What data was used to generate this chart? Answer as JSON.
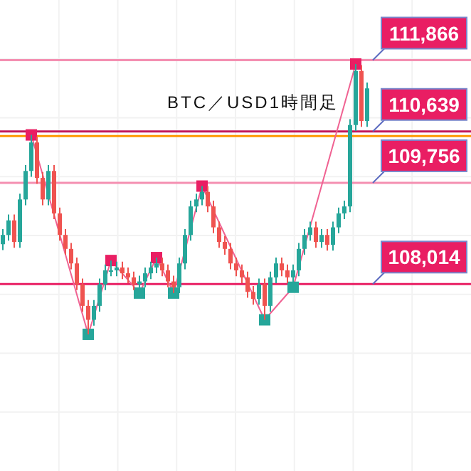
{
  "chart_data": {
    "type": "candlestick",
    "title": "BTC／USD1時間足",
    "categories": [
      null,
      null,
      null,
      null,
      null,
      null,
      null,
      null,
      null,
      null,
      null,
      null,
      null,
      null,
      null,
      null,
      null,
      null,
      null,
      null,
      null,
      null,
      null,
      null,
      null,
      null,
      null,
      null,
      null,
      null,
      null,
      null,
      null,
      null,
      null,
      null,
      null,
      null,
      null,
      null,
      null,
      null,
      null,
      null,
      null,
      null,
      null,
      null,
      null,
      null,
      null,
      null,
      null,
      null,
      null,
      null,
      null,
      null,
      null,
      null,
      null,
      null,
      null,
      null,
      null
    ],
    "ylim": [
      104800,
      112900
    ],
    "grid": true,
    "series": [
      {
        "colors": [
          "#26a69a",
          "#26a69a",
          "#ef5350",
          "#26a69a",
          "#26a69a",
          "#26a69a",
          "#ef5350",
          "#ef5350",
          "#26a69a",
          "#ef5350",
          "#ef5350",
          "#ef5350",
          "#ef5350",
          "#ef5350",
          "#ef5350",
          "#ef5350",
          "#26a69a",
          "#26a69a",
          "#26a69a",
          "#26a69a",
          "#26a69a",
          "#ef5350",
          "#ef5350",
          "#ef5350",
          "#26a69a",
          "#26a69a",
          "#26a69a",
          "#26a69a",
          "#ef5350",
          "#ef5350",
          "#ef5350",
          "#26a69a",
          "#26a69a",
          "#26a69a",
          "#26a69a",
          "#26a69a",
          "#ef5350",
          "#ef5350",
          "#ef5350",
          "#ef5350",
          "#ef5350",
          "#ef5350",
          "#ef5350",
          "#ef5350",
          "#ef5350",
          "#26a69a",
          "#ef5350",
          "#26a69a",
          "#26a69a",
          "#ef5350",
          "#ef5350",
          "#26a69a",
          "#26a69a",
          "#26a69a",
          "#26a69a",
          "#ef5350",
          "#26a69a",
          "#ef5350",
          "#26a69a",
          "#26a69a",
          "#26a69a",
          "#26a69a",
          "#26a69a",
          "#ef5350",
          "#26a69a"
        ],
        "ohlc": [
          [
            108700,
            108960,
            108600,
            108860
          ],
          [
            108860,
            109210,
            108760,
            109110
          ],
          [
            109110,
            109210,
            108640,
            108740
          ],
          [
            108740,
            109570,
            108640,
            109470
          ],
          [
            109470,
            110060,
            109370,
            109960
          ],
          [
            109960,
            110580,
            109860,
            110450
          ],
          [
            110450,
            110550,
            109740,
            109840
          ],
          [
            109840,
            109940,
            109370,
            109470
          ],
          [
            109470,
            110060,
            109370,
            109960
          ],
          [
            109960,
            110060,
            109130,
            109230
          ],
          [
            109230,
            109330,
            108760,
            108860
          ],
          [
            108860,
            108960,
            108520,
            108620
          ],
          [
            108620,
            108720,
            108270,
            108370
          ],
          [
            108370,
            108470,
            107910,
            108010
          ],
          [
            108010,
            108110,
            107540,
            107640
          ],
          [
            107640,
            107740,
            107150,
            107400
          ],
          [
            107400,
            107740,
            107300,
            107640
          ],
          [
            107640,
            108110,
            107540,
            108010
          ],
          [
            108010,
            108350,
            107910,
            108250
          ],
          [
            108250,
            108420,
            108150,
            108250
          ],
          [
            108250,
            108400,
            108150,
            108300
          ],
          [
            108300,
            108400,
            108100,
            108200
          ],
          [
            108200,
            108300,
            108030,
            108130
          ],
          [
            108130,
            108230,
            107910,
            108010
          ],
          [
            108010,
            108160,
            107860,
            108060
          ],
          [
            108060,
            108300,
            107960,
            108200
          ],
          [
            108200,
            108400,
            108100,
            108300
          ],
          [
            108300,
            108470,
            108200,
            108370
          ],
          [
            108370,
            108470,
            108150,
            108250
          ],
          [
            108250,
            108350,
            107960,
            108060
          ],
          [
            108060,
            108160,
            107860,
            107960
          ],
          [
            107960,
            108470,
            107860,
            108370
          ],
          [
            108370,
            108960,
            108270,
            108860
          ],
          [
            108860,
            109450,
            108760,
            109350
          ],
          [
            109350,
            109570,
            109250,
            109470
          ],
          [
            109470,
            109700,
            109370,
            109600
          ],
          [
            109600,
            109700,
            109250,
            109350
          ],
          [
            109350,
            109450,
            108890,
            108990
          ],
          [
            108990,
            109090,
            108640,
            108740
          ],
          [
            108740,
            108840,
            108520,
            108620
          ],
          [
            108620,
            108720,
            108270,
            108370
          ],
          [
            108370,
            108470,
            108150,
            108250
          ],
          [
            108250,
            108350,
            108030,
            108130
          ],
          [
            108130,
            108230,
            107780,
            107880
          ],
          [
            107880,
            107980,
            107660,
            107760
          ],
          [
            107760,
            108110,
            107660,
            108010
          ],
          [
            108010,
            108110,
            107400,
            107640
          ],
          [
            107640,
            108230,
            107540,
            108130
          ],
          [
            108130,
            108470,
            108030,
            108370
          ],
          [
            108370,
            108470,
            108150,
            108250
          ],
          [
            108250,
            108350,
            108030,
            108130
          ],
          [
            108130,
            108350,
            107960,
            108250
          ],
          [
            108250,
            108720,
            108150,
            108620
          ],
          [
            108620,
            108960,
            108520,
            108860
          ],
          [
            108860,
            109090,
            108760,
            108990
          ],
          [
            108990,
            109090,
            108640,
            108740
          ],
          [
            108740,
            108960,
            108640,
            108860
          ],
          [
            108860,
            108960,
            108590,
            108690
          ],
          [
            108690,
            109090,
            108590,
            108990
          ],
          [
            108990,
            109330,
            108890,
            109230
          ],
          [
            109230,
            109450,
            109130,
            109350
          ],
          [
            109350,
            110850,
            109250,
            110750
          ],
          [
            110750,
            111800,
            110650,
            111680
          ],
          [
            111680,
            111780,
            110720,
            110820
          ],
          [
            110820,
            111480,
            110720,
            111380
          ]
        ]
      },
      {
        "type": "line",
        "color": "#f06292",
        "marker": "square",
        "colors": [
          null,
          null,
          null,
          null,
          null,
          "#e91e63",
          null,
          null,
          null,
          null,
          null,
          null,
          null,
          null,
          null,
          "#26a69a",
          null,
          null,
          null,
          "#e91e63",
          null,
          null,
          null,
          null,
          "#26a69a",
          null,
          null,
          "#e91e63",
          null,
          null,
          "#26a69a",
          null,
          null,
          null,
          null,
          "#e91e63",
          null,
          null,
          null,
          null,
          null,
          null,
          null,
          null,
          null,
          null,
          "#26a69a",
          null,
          null,
          null,
          null,
          "#26a69a",
          null,
          null,
          null,
          null,
          null,
          null,
          null,
          null,
          null,
          null,
          "#e91e63",
          null,
          null
        ],
        "values": [
          null,
          null,
          null,
          null,
          null,
          110580,
          null,
          null,
          null,
          null,
          null,
          null,
          null,
          null,
          null,
          107150,
          null,
          null,
          null,
          108420,
          null,
          null,
          null,
          null,
          107860,
          null,
          null,
          108470,
          null,
          null,
          107860,
          null,
          null,
          null,
          null,
          109700,
          null,
          null,
          null,
          null,
          null,
          null,
          null,
          null,
          null,
          null,
          107400,
          null,
          null,
          null,
          null,
          107960,
          null,
          null,
          null,
          null,
          null,
          null,
          null,
          null,
          null,
          null,
          111800,
          null,
          null
        ]
      }
    ],
    "ref_lines": [
      {
        "axis": "y",
        "value": 111866,
        "label": "111,866",
        "color": "#f48fb1"
      },
      {
        "axis": "y",
        "value": 110639,
        "label": "110,639",
        "color": "#c2185b"
      },
      {
        "axis": "y",
        "value": 110560,
        "color": "#ff9800"
      },
      {
        "axis": "y",
        "value": 109756,
        "label": "109,756",
        "color": "#f48fb1"
      },
      {
        "axis": "y",
        "value": 108014,
        "label": "108,014",
        "color": "#e91e63"
      }
    ]
  }
}
